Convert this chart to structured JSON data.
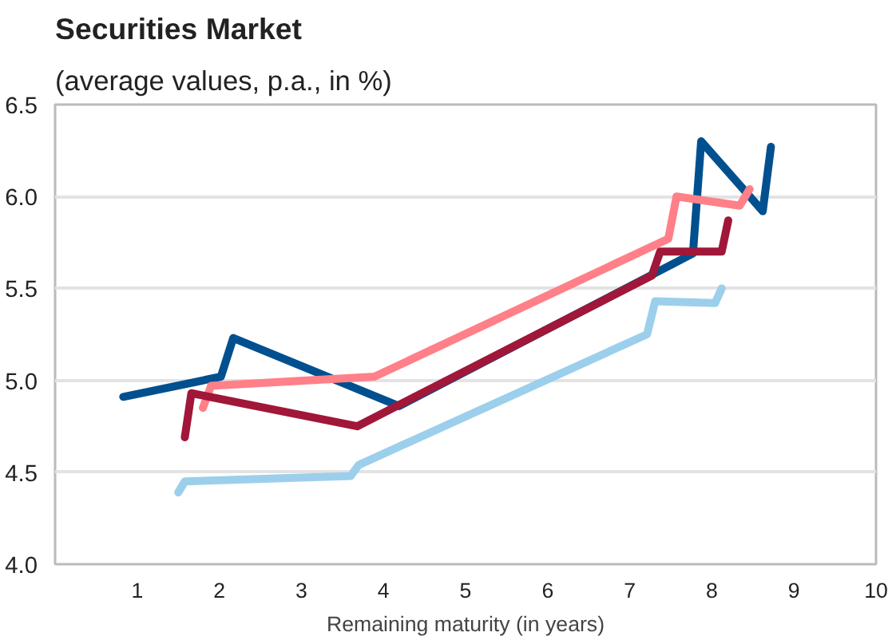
{
  "chart_data": {
    "type": "line",
    "title": "Securities Market",
    "subtitle": "(average values, p.a., in %)",
    "xlabel": "Remaining maturity (in years)",
    "xlim": [
      0,
      10
    ],
    "xticks": [
      1,
      2,
      3,
      4,
      5,
      6,
      7,
      8,
      9,
      10
    ],
    "ylim": [
      4.0,
      6.5
    ],
    "yticks": [
      {
        "value": 4.0,
        "label": "4.0"
      },
      {
        "value": 4.5,
        "label": "4.5"
      },
      {
        "value": 5.0,
        "label": "5.0"
      },
      {
        "value": 5.5,
        "label": "5.5"
      },
      {
        "value": 6.0,
        "label": "6.0"
      },
      {
        "value": 6.5,
        "label": "6.5"
      }
    ],
    "grid": "y",
    "marker": "none",
    "line_style": "solid",
    "series": [
      {
        "color": "#00508f",
        "x": [
          0.83,
          2.02,
          2.17,
          4.19,
          7.77,
          7.87,
          8.62,
          8.72
        ],
        "values": [
          4.91,
          5.02,
          5.23,
          4.86,
          5.69,
          6.3,
          5.92,
          6.27
        ]
      },
      {
        "color": "#ff8088",
        "x": [
          1.8,
          1.9,
          3.89,
          7.47,
          7.57,
          8.34,
          8.46
        ],
        "values": [
          4.85,
          4.97,
          5.02,
          5.77,
          6.0,
          5.95,
          6.04
        ]
      },
      {
        "color": "#a0173a",
        "x": [
          1.58,
          1.66,
          3.68,
          7.27,
          7.37,
          8.12,
          8.2
        ],
        "values": [
          4.69,
          4.93,
          4.75,
          5.57,
          5.7,
          5.7,
          5.87
        ]
      },
      {
        "color": "#9ccfeb",
        "x": [
          1.5,
          1.58,
          3.6,
          3.7,
          7.21,
          7.31,
          8.04,
          8.12
        ],
        "values": [
          4.39,
          4.45,
          4.48,
          4.54,
          5.25,
          5.43,
          5.42,
          5.5
        ]
      }
    ]
  }
}
